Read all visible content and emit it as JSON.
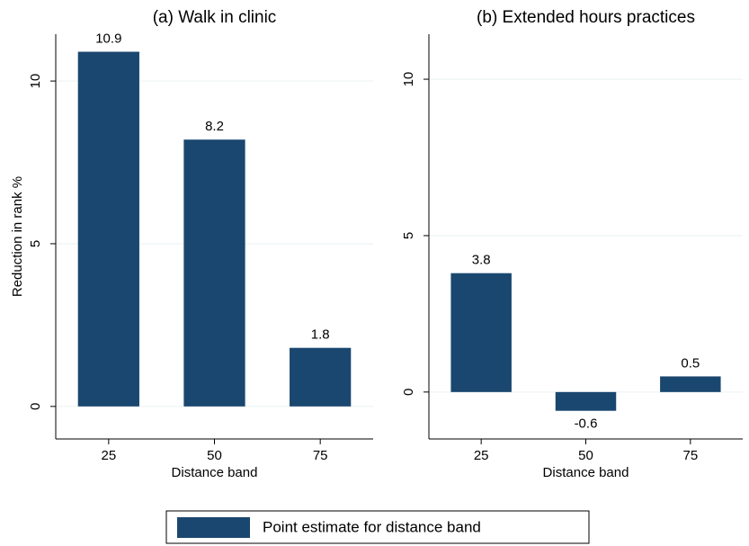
{
  "chart_data": [
    {
      "type": "bar",
      "title": "(a) Walk in clinic",
      "categories": [
        "25",
        "50",
        "75"
      ],
      "values": [
        10.9,
        8.2,
        1.8
      ],
      "color": "#1a476f",
      "ylim": [
        -1,
        11.44
      ],
      "yticks": [
        0,
        5,
        10
      ],
      "grid": true,
      "xlabel": "Distance band",
      "ylabel": "Reduction in rank %"
    },
    {
      "type": "bar",
      "title": "(b) Extended hours practices",
      "categories": [
        "25",
        "50",
        "75"
      ],
      "values": [
        3.8,
        -0.6,
        0.5
      ],
      "color": "#1a476f",
      "ylim": [
        -1.5,
        11.44
      ],
      "yticks": [
        0,
        5,
        10
      ],
      "grid": true,
      "xlabel": "Distance band"
    }
  ],
  "legend": {
    "label": "Point estimate for distance band",
    "color": "#1a476f"
  }
}
